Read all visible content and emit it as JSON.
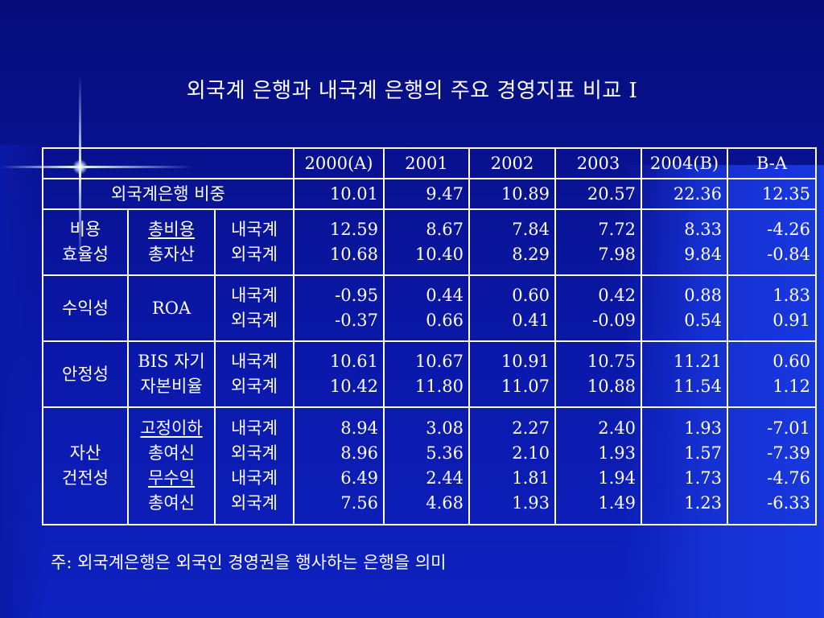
{
  "title": "외국계 은행과 내국계 은행의 주요 경영지표 비교 I",
  "header": [
    "2000(A)",
    "2001",
    "2002",
    "2003",
    "2004(B)",
    "B-A"
  ],
  "share_row": {
    "label": "외국계은행 비중",
    "values": [
      "10.01",
      "9.47",
      "10.89",
      "20.57",
      "22.36",
      "12.35"
    ]
  },
  "groups": [
    {
      "category": [
        "비용",
        "효율성"
      ],
      "sub": [
        "총비용",
        "총자산"
      ],
      "kinds": [
        "내국계",
        "외국계"
      ],
      "rows": [
        [
          "12.59",
          "8.67",
          "7.84",
          "7.72",
          "8.33",
          "-4.26"
        ],
        [
          "10.68",
          "10.40",
          "8.29",
          "7.98",
          "9.84",
          "-0.84"
        ]
      ]
    },
    {
      "category": [
        "수익성"
      ],
      "sub": [
        "ROA"
      ],
      "kinds": [
        "내국계",
        "외국계"
      ],
      "rows": [
        [
          "-0.95",
          "0.44",
          "0.60",
          "0.42",
          "0.88",
          "1.83"
        ],
        [
          "-0.37",
          "0.66",
          "0.41",
          "-0.09",
          "0.54",
          "0.91"
        ]
      ]
    },
    {
      "category": [
        "안정성"
      ],
      "sub": [
        "BIS 자기",
        "자본비율"
      ],
      "kinds": [
        "내국계",
        "외국계"
      ],
      "rows": [
        [
          "10.61",
          "10.67",
          "10.91",
          "10.75",
          "11.21",
          "0.60"
        ],
        [
          "10.42",
          "11.80",
          "11.07",
          "10.88",
          "11.54",
          "1.12"
        ]
      ]
    },
    {
      "category": [
        "자산",
        "건전성"
      ],
      "sub": [
        "고정이하",
        "총여신",
        "무수익",
        "총여신"
      ],
      "kinds": [
        "내국계",
        "외국계",
        "내국계",
        "외국계"
      ],
      "rows": [
        [
          "8.94",
          "3.08",
          "2.27",
          "2.40",
          "1.93",
          "-7.01"
        ],
        [
          "8.96",
          "5.36",
          "2.10",
          "1.93",
          "1.57",
          "-7.39"
        ],
        [
          "6.49",
          "2.44",
          "1.81",
          "1.94",
          "1.73",
          "-4.76"
        ],
        [
          "7.56",
          "4.68",
          "1.93",
          "1.49",
          "1.23",
          "-6.33"
        ]
      ]
    }
  ],
  "note": "주: 외국계은행은 외국인 경영권을 행사하는 은행을 의미"
}
